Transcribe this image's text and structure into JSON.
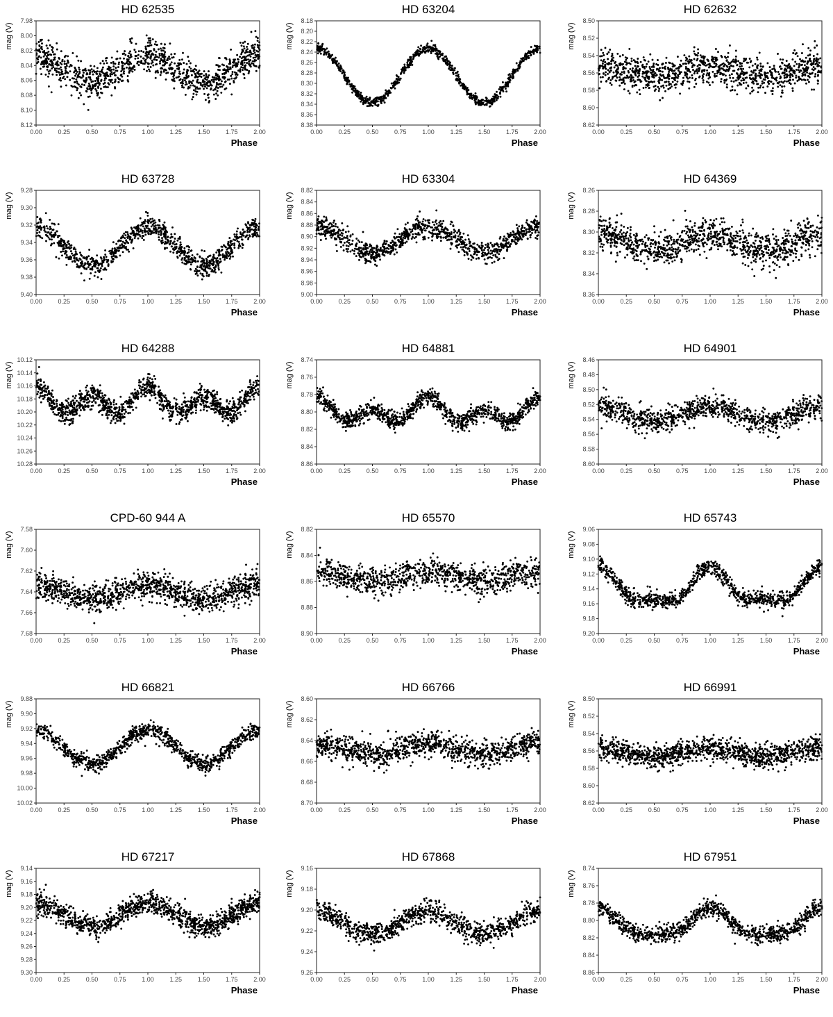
{
  "chart_data": [
    {
      "type": "scatter",
      "title": "HD 62535",
      "xlabel": "Phase",
      "ylabel": "mag (V)",
      "xlim": [
        0,
        2
      ],
      "ylim": [
        7.98,
        8.12
      ],
      "invert_y": true,
      "xticks": [
        "0.00",
        "0.25",
        "0.50",
        "0.75",
        "1.00",
        "1.25",
        "1.50",
        "1.75",
        "2.00"
      ],
      "yticks": [
        "7.98",
        "8.00",
        "8.02",
        "8.04",
        "8.06",
        "8.08",
        "8.10",
        "8.12"
      ],
      "curve": {
        "mean": 8.045,
        "amp": 0.018,
        "phase": 0.0,
        "scatter": 0.024,
        "harmonic": 0,
        "n": 1100,
        "seed": 11
      }
    },
    {
      "type": "scatter",
      "title": "HD 63204",
      "xlabel": "Phase",
      "ylabel": "mag (V)",
      "xlim": [
        0,
        2
      ],
      "ylim": [
        8.18,
        8.38
      ],
      "invert_y": true,
      "xticks": [
        "0.00",
        "0.25",
        "0.50",
        "0.75",
        "1.00",
        "1.25",
        "1.50",
        "1.75",
        "2.00"
      ],
      "yticks": [
        "8.18",
        "8.20",
        "8.22",
        "8.24",
        "8.26",
        "8.28",
        "8.30",
        "8.32",
        "8.34",
        "8.36",
        "8.38"
      ],
      "curve": {
        "mean": 8.285,
        "amp": 0.052,
        "phase": 0.0,
        "scatter": 0.009,
        "harmonic": 0,
        "n": 900,
        "seed": 12
      }
    },
    {
      "type": "scatter",
      "title": "HD 62632",
      "xlabel": "Phase",
      "ylabel": "mag (V)",
      "xlim": [
        0,
        2
      ],
      "ylim": [
        8.5,
        8.62
      ],
      "invert_y": true,
      "xticks": [
        "0.00",
        "0.25",
        "0.50",
        "0.75",
        "1.00",
        "1.25",
        "1.50",
        "1.75",
        "2.00"
      ],
      "yticks": [
        "8.50",
        "8.52",
        "8.54",
        "8.56",
        "8.58",
        "8.60",
        "8.62"
      ],
      "curve": {
        "mean": 8.558,
        "amp": 0.006,
        "phase": 0.0,
        "scatter": 0.02,
        "harmonic": 0,
        "n": 1100,
        "seed": 13
      }
    },
    {
      "type": "scatter",
      "title": "HD 63728",
      "xlabel": "Phase",
      "ylabel": "mag (V)",
      "xlim": [
        0,
        2
      ],
      "ylim": [
        9.28,
        9.4
      ],
      "invert_y": true,
      "xticks": [
        "0.00",
        "0.25",
        "0.50",
        "0.75",
        "1.00",
        "1.25",
        "1.50",
        "1.75",
        "2.00"
      ],
      "yticks": [
        "9.28",
        "9.30",
        "9.32",
        "9.34",
        "9.36",
        "9.38",
        "9.40"
      ],
      "curve": {
        "mean": 9.345,
        "amp": 0.022,
        "phase": 0.0,
        "scatter": 0.013,
        "harmonic": 0,
        "n": 1000,
        "seed": 21
      }
    },
    {
      "type": "scatter",
      "title": "HD 63304",
      "xlabel": "Phase",
      "ylabel": "mag (V)",
      "xlim": [
        0,
        2
      ],
      "ylim": [
        8.82,
        9.0
      ],
      "invert_y": true,
      "xticks": [
        "0.00",
        "0.25",
        "0.50",
        "0.75",
        "1.00",
        "1.25",
        "1.50",
        "1.75",
        "2.00"
      ],
      "yticks": [
        "8.82",
        "8.84",
        "8.86",
        "8.88",
        "8.90",
        "8.92",
        "8.94",
        "8.96",
        "8.98",
        "9.00"
      ],
      "curve": {
        "mean": 8.905,
        "amp": 0.022,
        "phase": 0.0,
        "scatter": 0.018,
        "harmonic": 0,
        "n": 1000,
        "seed": 22
      }
    },
    {
      "type": "scatter",
      "title": "HD 64369",
      "xlabel": "Phase",
      "ylabel": "mag (V)",
      "xlim": [
        0,
        2
      ],
      "ylim": [
        8.26,
        8.36
      ],
      "invert_y": true,
      "xticks": [
        "0.00",
        "0.25",
        "0.50",
        "0.75",
        "1.00",
        "1.25",
        "1.50",
        "1.75",
        "2.00"
      ],
      "yticks": [
        "8.26",
        "8.28",
        "8.30",
        "8.32",
        "8.34",
        "8.36"
      ],
      "curve": {
        "mean": 8.31,
        "amp": 0.008,
        "phase": 0.0,
        "scatter": 0.016,
        "harmonic": 0,
        "n": 1100,
        "seed": 23
      }
    },
    {
      "type": "scatter",
      "title": "HD 64288",
      "xlabel": "Phase",
      "ylabel": "mag (V)",
      "xlim": [
        0,
        2
      ],
      "ylim": [
        10.12,
        10.28
      ],
      "invert_y": true,
      "xticks": [
        "0.00",
        "0.25",
        "0.50",
        "0.75",
        "1.00",
        "1.25",
        "1.50",
        "1.75",
        "2.00"
      ],
      "yticks": [
        "10.12",
        "10.14",
        "10.16",
        "10.18",
        "10.20",
        "10.22",
        "10.24",
        "10.26",
        "10.28"
      ],
      "curve": {
        "mean": 10.185,
        "amp": 0.008,
        "phase": 0.0,
        "scatter": 0.018,
        "harmonic": 0.016,
        "n": 1200,
        "seed": 31
      }
    },
    {
      "type": "scatter",
      "title": "HD 64881",
      "xlabel": "Phase",
      "ylabel": "mag (V)",
      "xlim": [
        0,
        2
      ],
      "ylim": [
        8.74,
        8.86
      ],
      "invert_y": true,
      "xticks": [
        "0.00",
        "0.25",
        "0.50",
        "0.75",
        "1.00",
        "1.25",
        "1.50",
        "1.75",
        "2.00"
      ],
      "yticks": [
        "8.74",
        "8.76",
        "8.78",
        "8.80",
        "8.82",
        "8.84",
        "8.86"
      ],
      "curve": {
        "mean": 8.8,
        "amp": 0.008,
        "phase": 0.0,
        "scatter": 0.01,
        "harmonic": 0.01,
        "n": 1100,
        "seed": 32
      }
    },
    {
      "type": "scatter",
      "title": "HD 64901",
      "xlabel": "Phase",
      "ylabel": "mag (V)",
      "xlim": [
        0,
        2
      ],
      "ylim": [
        8.46,
        8.6
      ],
      "invert_y": true,
      "xticks": [
        "0.00",
        "0.25",
        "0.50",
        "0.75",
        "1.00",
        "1.25",
        "1.50",
        "1.75",
        "2.00"
      ],
      "yticks": [
        "8.46",
        "8.48",
        "8.50",
        "8.52",
        "8.54",
        "8.56",
        "8.58",
        "8.60"
      ],
      "curve": {
        "mean": 8.533,
        "amp": 0.01,
        "phase": 0.0,
        "scatter": 0.016,
        "harmonic": 0,
        "n": 1000,
        "seed": 33
      }
    },
    {
      "type": "scatter",
      "title": "CPD-60 944 A",
      "xlabel": "Phase",
      "ylabel": "mag (V)",
      "xlim": [
        0,
        2
      ],
      "ylim": [
        7.58,
        7.68
      ],
      "invert_y": true,
      "xticks": [
        "0.00",
        "0.25",
        "0.50",
        "0.75",
        "1.00",
        "1.25",
        "1.50",
        "1.75",
        "2.00"
      ],
      "yticks": [
        "7.58",
        "7.60",
        "7.62",
        "7.64",
        "7.66",
        "7.68"
      ],
      "curve": {
        "mean": 7.64,
        "amp": 0.007,
        "phase": 0.0,
        "scatter": 0.013,
        "harmonic": 0,
        "n": 1200,
        "seed": 41
      }
    },
    {
      "type": "scatter",
      "title": "HD 65570",
      "xlabel": "Phase",
      "ylabel": "mag (V)",
      "xlim": [
        0,
        2
      ],
      "ylim": [
        8.82,
        8.9
      ],
      "invert_y": true,
      "xticks": [
        "0.00",
        "0.25",
        "0.50",
        "0.75",
        "1.00",
        "1.25",
        "1.50",
        "1.75",
        "2.00"
      ],
      "yticks": [
        "8.82",
        "8.84",
        "8.86",
        "8.88",
        "8.90"
      ],
      "curve": {
        "mean": 8.856,
        "amp": 0.004,
        "phase": 0.0,
        "scatter": 0.011,
        "harmonic": 0,
        "n": 1000,
        "seed": 42
      }
    },
    {
      "type": "scatter",
      "title": "HD 65743",
      "xlabel": "Phase",
      "ylabel": "mag (V)",
      "xlim": [
        0,
        2
      ],
      "ylim": [
        9.06,
        9.2
      ],
      "invert_y": true,
      "xticks": [
        "0.00",
        "0.25",
        "0.50",
        "0.75",
        "1.00",
        "1.25",
        "1.50",
        "1.75",
        "2.00"
      ],
      "yticks": [
        "9.06",
        "9.08",
        "9.10",
        "9.12",
        "9.14",
        "9.16",
        "9.18",
        "9.20"
      ],
      "curve": {
        "mean": 9.14,
        "amp": 0.022,
        "phase": 0.0,
        "scatter": 0.011,
        "harmonic": 0.008,
        "n": 1000,
        "seed": 43
      }
    },
    {
      "type": "scatter",
      "title": "HD 66821",
      "xlabel": "Phase",
      "ylabel": "mag (V)",
      "xlim": [
        0,
        2
      ],
      "ylim": [
        9.88,
        10.02
      ],
      "invert_y": true,
      "xticks": [
        "0.00",
        "0.25",
        "0.50",
        "0.75",
        "1.00",
        "1.25",
        "1.50",
        "1.75",
        "2.00"
      ],
      "yticks": [
        "9.88",
        "9.90",
        "9.92",
        "9.94",
        "9.96",
        "9.98",
        "10.00",
        "10.02"
      ],
      "curve": {
        "mean": 9.945,
        "amp": 0.023,
        "phase": 0.0,
        "scatter": 0.011,
        "harmonic": 0,
        "n": 1000,
        "seed": 51
      }
    },
    {
      "type": "scatter",
      "title": "HD 66766",
      "xlabel": "Phase",
      "ylabel": "mag (V)",
      "xlim": [
        0,
        2
      ],
      "ylim": [
        8.6,
        8.7
      ],
      "invert_y": true,
      "xticks": [
        "0.00",
        "0.25",
        "0.50",
        "0.75",
        "1.00",
        "1.25",
        "1.50",
        "1.75",
        "2.00"
      ],
      "yticks": [
        "8.60",
        "8.62",
        "8.64",
        "8.66",
        "8.68",
        "8.70"
      ],
      "curve": {
        "mean": 8.648,
        "amp": 0.005,
        "phase": 0.0,
        "scatter": 0.012,
        "harmonic": 0,
        "n": 1100,
        "seed": 52
      }
    },
    {
      "type": "scatter",
      "title": "HD 66991",
      "xlabel": "Phase",
      "ylabel": "mag (V)",
      "xlim": [
        0,
        2
      ],
      "ylim": [
        8.5,
        8.62
      ],
      "invert_y": true,
      "xticks": [
        "0.00",
        "0.25",
        "0.50",
        "0.75",
        "1.00",
        "1.25",
        "1.50",
        "1.75",
        "2.00"
      ],
      "yticks": [
        "8.50",
        "8.52",
        "8.54",
        "8.56",
        "8.58",
        "8.60",
        "8.62"
      ],
      "curve": {
        "mean": 8.562,
        "amp": 0.005,
        "phase": 0.0,
        "scatter": 0.013,
        "harmonic": 0,
        "n": 1200,
        "seed": 53
      }
    },
    {
      "type": "scatter",
      "title": "HD 67217",
      "xlabel": "Phase",
      "ylabel": "mag (V)",
      "xlim": [
        0,
        2
      ],
      "ylim": [
        9.14,
        9.3
      ],
      "invert_y": true,
      "xticks": [
        "0.00",
        "0.25",
        "0.50",
        "0.75",
        "1.00",
        "1.25",
        "1.50",
        "1.75",
        "2.00"
      ],
      "yticks": [
        "9.14",
        "9.16",
        "9.18",
        "9.20",
        "9.22",
        "9.24",
        "9.26",
        "9.28",
        "9.30"
      ],
      "curve": {
        "mean": 9.212,
        "amp": 0.018,
        "phase": 0.0,
        "scatter": 0.017,
        "harmonic": 0,
        "n": 1200,
        "seed": 61
      }
    },
    {
      "type": "scatter",
      "title": "HD 67868",
      "xlabel": "Phase",
      "ylabel": "mag (V)",
      "xlim": [
        0,
        2
      ],
      "ylim": [
        9.16,
        9.26
      ],
      "invert_y": true,
      "xticks": [
        "0.00",
        "0.25",
        "0.50",
        "0.75",
        "1.00",
        "1.25",
        "1.50",
        "1.75",
        "2.00"
      ],
      "yticks": [
        "9.16",
        "9.18",
        "9.20",
        "9.22",
        "9.24",
        "9.26"
      ],
      "curve": {
        "mean": 9.212,
        "amp": 0.011,
        "phase": 0.0,
        "scatter": 0.01,
        "harmonic": 0,
        "n": 1000,
        "seed": 62
      }
    },
    {
      "type": "scatter",
      "title": "HD 67951",
      "xlabel": "Phase",
      "ylabel": "mag (V)",
      "xlim": [
        0,
        2
      ],
      "ylim": [
        8.74,
        8.86
      ],
      "invert_y": true,
      "xticks": [
        "0.00",
        "0.25",
        "0.50",
        "0.75",
        "1.00",
        "1.25",
        "1.50",
        "1.75",
        "2.00"
      ],
      "yticks": [
        "8.74",
        "8.76",
        "8.78",
        "8.80",
        "8.82",
        "8.84",
        "8.86"
      ],
      "curve": {
        "mean": 8.805,
        "amp": 0.015,
        "phase": 0.0,
        "scatter": 0.01,
        "harmonic": 0.004,
        "n": 1000,
        "seed": 63
      }
    }
  ]
}
